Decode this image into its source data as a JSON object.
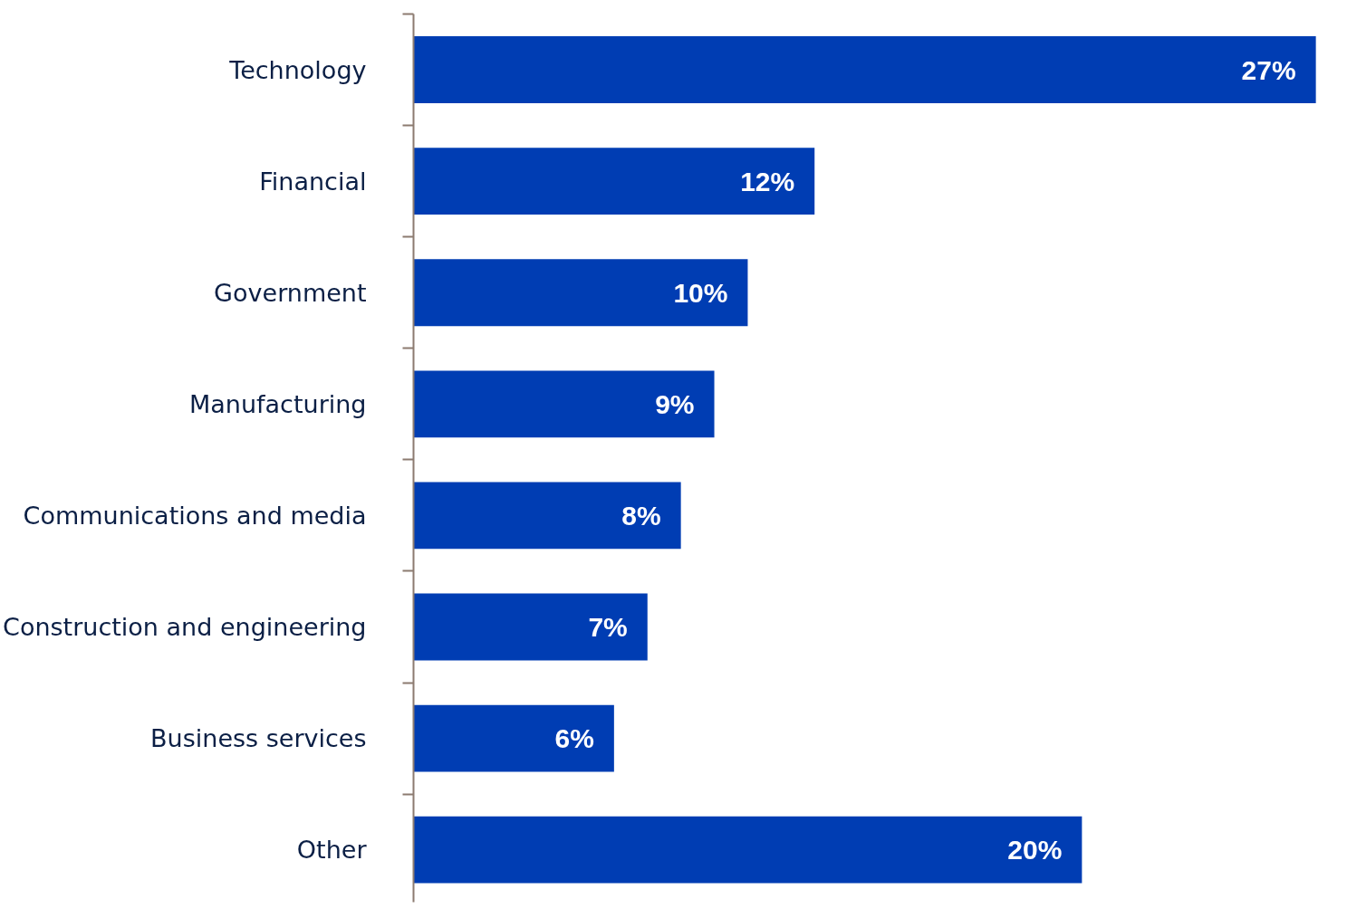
{
  "chart_data": {
    "type": "bar",
    "orientation": "horizontal",
    "categories": [
      "Technology",
      "Financial",
      "Government",
      "Manufacturing",
      "Communications and media",
      "Construction and engineering",
      "Business services",
      "Other"
    ],
    "values": [
      27,
      12,
      10,
      9,
      8,
      7,
      6,
      20
    ],
    "value_labels": [
      "27%",
      "12%",
      "10%",
      "9%",
      "8%",
      "7%",
      "6%",
      "20%"
    ],
    "color": "#003db3"
  }
}
